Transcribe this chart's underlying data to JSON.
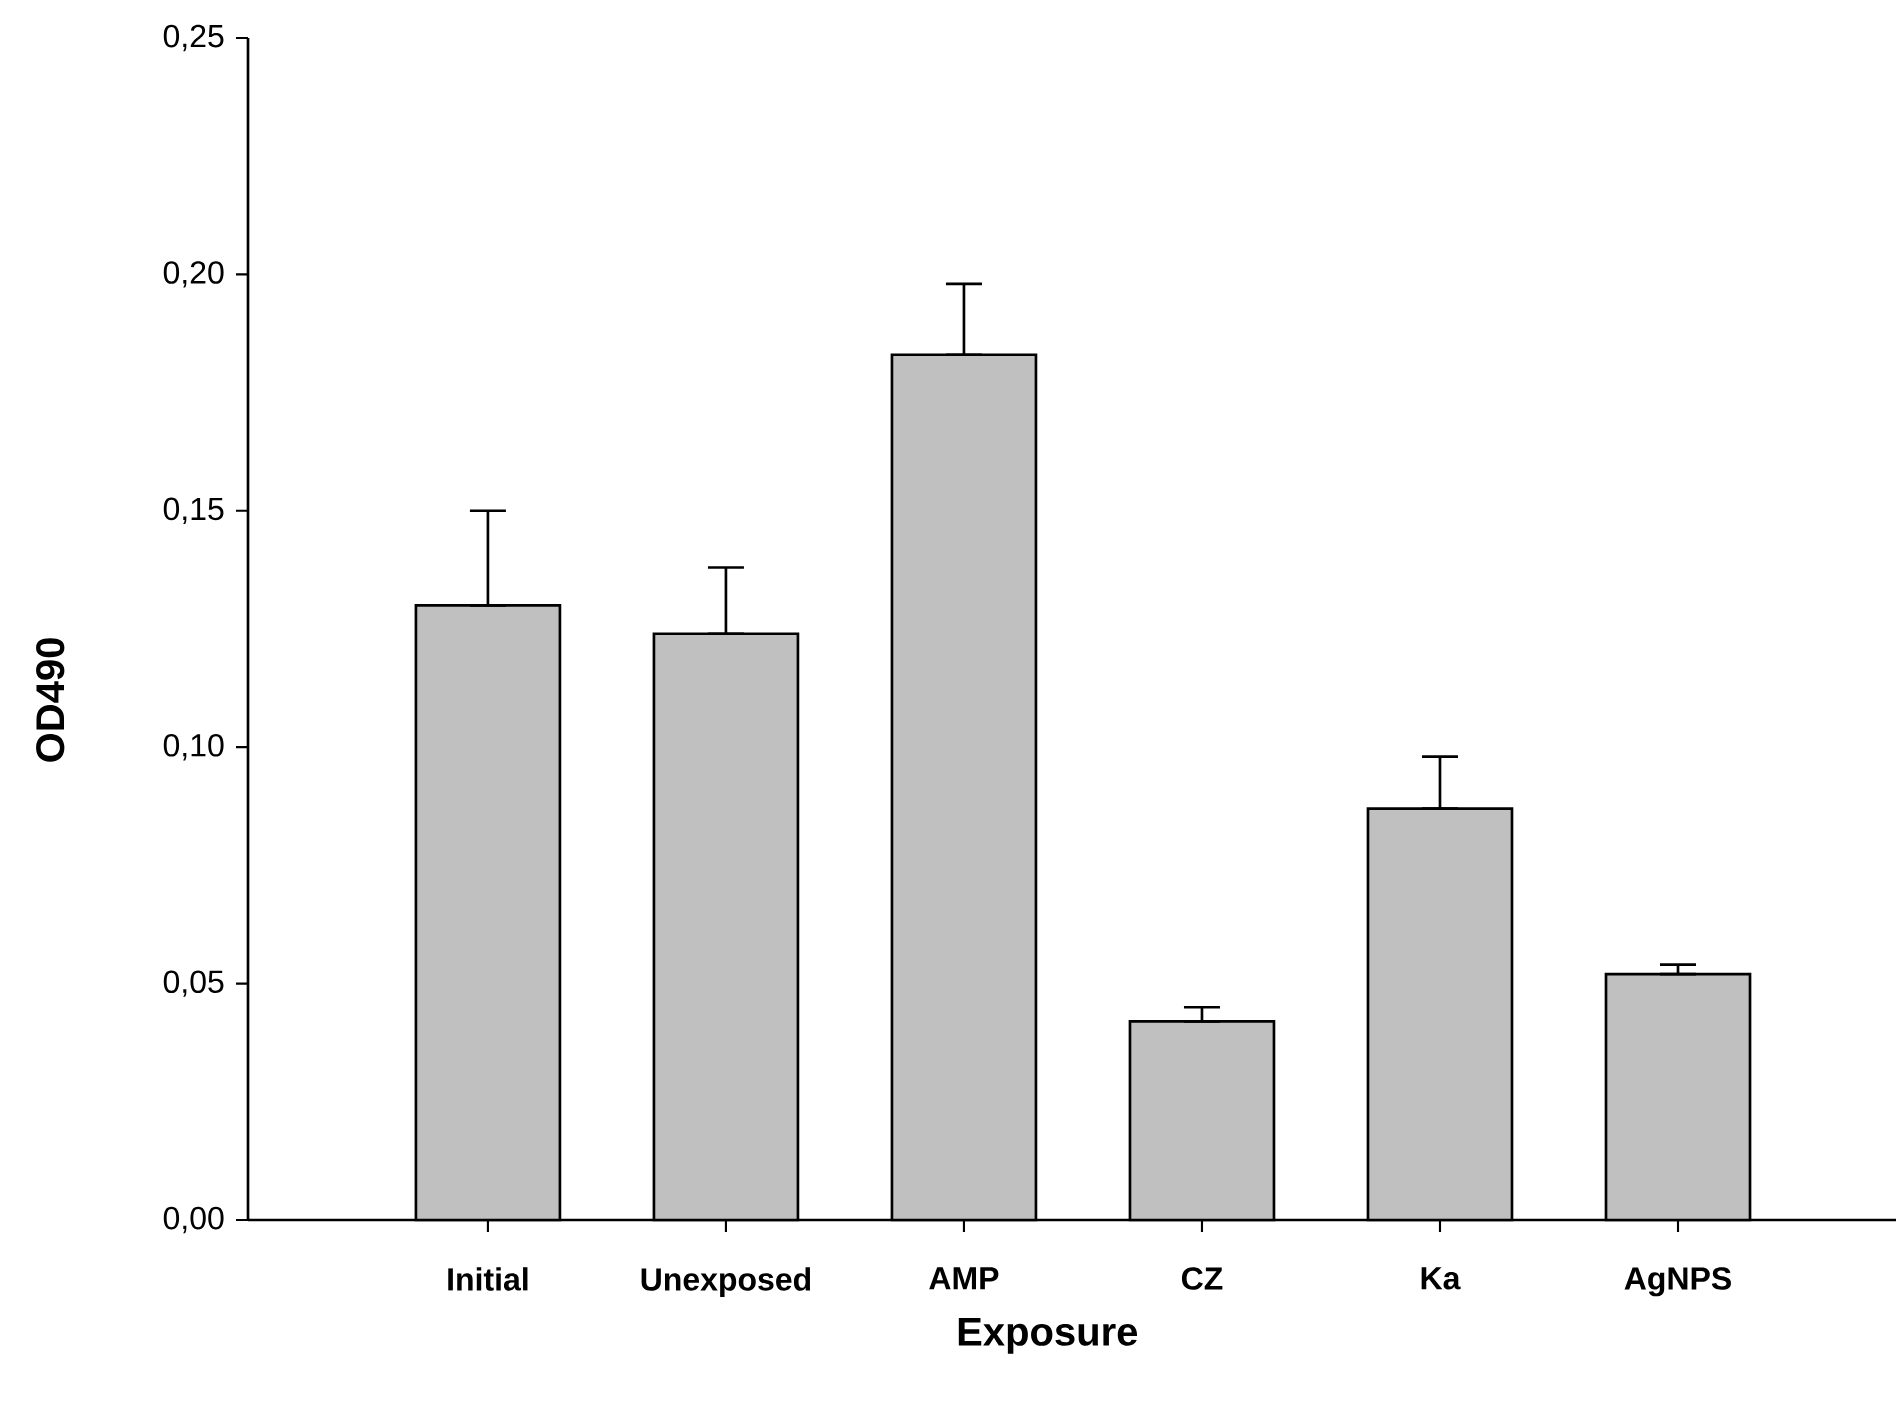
{
  "chart_data": {
    "type": "bar",
    "xlabel": "Exposure",
    "ylabel": "OD490",
    "categories": [
      "Initial",
      "Unexposed",
      "AMP",
      "CZ",
      "Ka",
      "AgNPS"
    ],
    "values": [
      0.13,
      0.124,
      0.183,
      0.042,
      0.087,
      0.052
    ],
    "errors": [
      [
        0.13,
        0.15
      ],
      [
        0.124,
        0.138
      ],
      [
        0.183,
        0.198
      ],
      [
        0.042,
        0.045
      ],
      [
        0.087,
        0.098
      ],
      [
        0.052,
        0.054
      ]
    ],
    "color": "#c0c0c0",
    "ylim": [
      0,
      0.25
    ],
    "yticks": [
      {
        "value": 0,
        "label": "0,00"
      },
      {
        "value": 0.05,
        "label": "0,05"
      },
      {
        "value": 0.1,
        "label": "0,10"
      },
      {
        "value": 0.15,
        "label": "0,15"
      },
      {
        "value": 0.2,
        "label": "0,20"
      },
      {
        "value": 0.25,
        "label": "0,25"
      }
    ]
  }
}
